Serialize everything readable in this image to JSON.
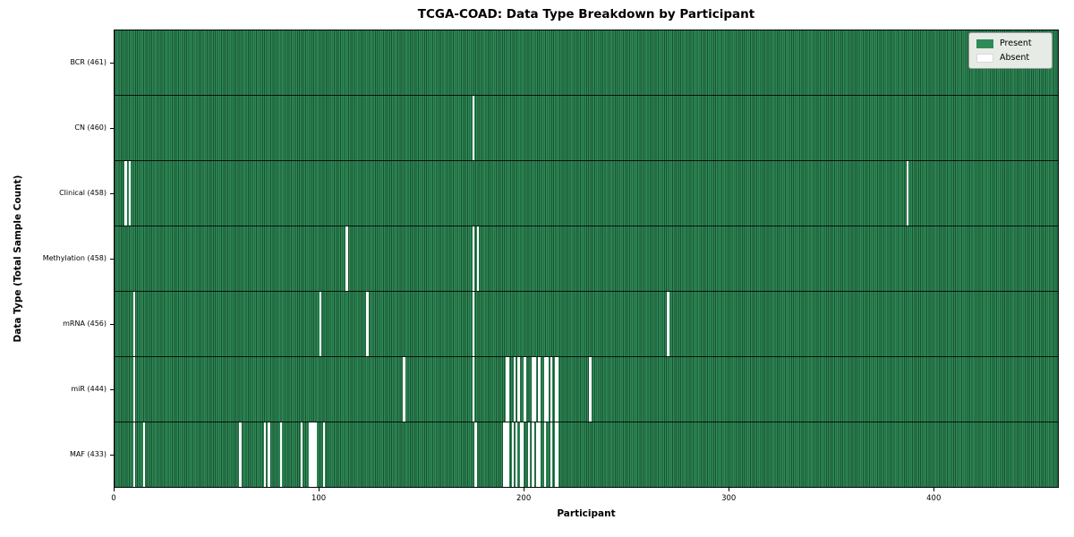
{
  "figure": {
    "title": "TCGA-COAD: Data Type Breakdown by Participant",
    "xlabel": "Participant",
    "ylabel": "Data Type (Total Sample Count)"
  },
  "legend": {
    "items": [
      {
        "label": "Present",
        "color": "#2e8b57"
      },
      {
        "label": "Absent",
        "color": "#ffffff"
      }
    ]
  },
  "chart_data": {
    "type": "heatmap",
    "title": "TCGA-COAD: Data Type Breakdown by Participant",
    "xlabel": "Participant",
    "ylabel": "Data Type (Total Sample Count)",
    "legend_position": "upper right",
    "legend_entries": [
      "Present",
      "Absent"
    ],
    "present_color": "#2e8b57",
    "absent_color": "#ffffff",
    "n_participants": 461,
    "xlim": [
      0,
      461
    ],
    "x_ticks": [
      0,
      100,
      200,
      300,
      400
    ],
    "rows": [
      {
        "label": "BCR",
        "count": 461,
        "absent": []
      },
      {
        "label": "CN",
        "count": 460,
        "absent": [
          175
        ]
      },
      {
        "label": "Clinical",
        "count": 458,
        "absent": [
          5,
          7,
          387
        ]
      },
      {
        "label": "Methylation",
        "count": 458,
        "absent": [
          113,
          175,
          177
        ]
      },
      {
        "label": "mRNA",
        "count": 456,
        "absent": [
          9,
          100,
          123,
          175,
          270
        ]
      },
      {
        "label": "miR",
        "count": 444,
        "absent": [
          9,
          141,
          175,
          191,
          192,
          195,
          197,
          200,
          204,
          205,
          207,
          210,
          211,
          213,
          215,
          216,
          232
        ]
      },
      {
        "label": "MAF",
        "count": 433,
        "absent": [
          9,
          14,
          61,
          73,
          75,
          81,
          91,
          95,
          96,
          97,
          98,
          102,
          176,
          190,
          191,
          192,
          194,
          196,
          198,
          199,
          202,
          204,
          206,
          207,
          210,
          213,
          215,
          216
        ]
      }
    ]
  }
}
